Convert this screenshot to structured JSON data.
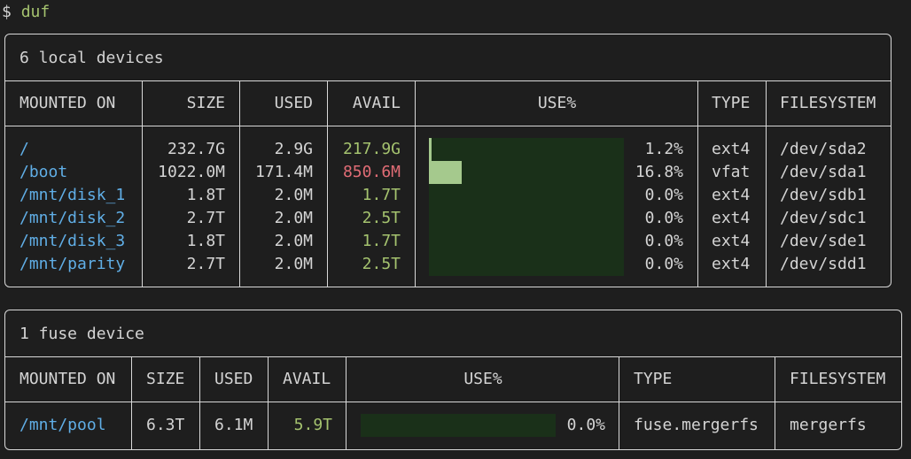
{
  "prompt": {
    "symbol": "$",
    "command": "duf"
  },
  "local": {
    "title": "6 local devices",
    "headers": {
      "mounted_on": "MOUNTED ON",
      "size": "SIZE",
      "used": "USED",
      "avail": "AVAIL",
      "use_pct": "USE%",
      "type": "TYPE",
      "filesystem": "FILESYSTEM"
    },
    "rows": [
      {
        "mounted_on": "/",
        "size": "232.7G",
        "used": "2.9G",
        "avail": "217.9G",
        "avail_status": "ok",
        "usage": 0.012,
        "use_pct": "1.2%",
        "type": "ext4",
        "filesystem": "/dev/sda2"
      },
      {
        "mounted_on": "/boot",
        "size": "1022.0M",
        "used": "171.4M",
        "avail": "850.6M",
        "avail_status": "low",
        "usage": 0.168,
        "use_pct": "16.8%",
        "type": "vfat",
        "filesystem": "/dev/sda1"
      },
      {
        "mounted_on": "/mnt/disk_1",
        "size": "1.8T",
        "used": "2.0M",
        "avail": "1.7T",
        "avail_status": "ok",
        "usage": 0.0,
        "use_pct": "0.0%",
        "type": "ext4",
        "filesystem": "/dev/sdb1"
      },
      {
        "mounted_on": "/mnt/disk_2",
        "size": "2.7T",
        "used": "2.0M",
        "avail": "2.5T",
        "avail_status": "ok",
        "usage": 0.0,
        "use_pct": "0.0%",
        "type": "ext4",
        "filesystem": "/dev/sdc1"
      },
      {
        "mounted_on": "/mnt/disk_3",
        "size": "1.8T",
        "used": "2.0M",
        "avail": "1.7T",
        "avail_status": "ok",
        "usage": 0.0,
        "use_pct": "0.0%",
        "type": "ext4",
        "filesystem": "/dev/sde1"
      },
      {
        "mounted_on": "/mnt/parity",
        "size": "2.7T",
        "used": "2.0M",
        "avail": "2.5T",
        "avail_status": "ok",
        "usage": 0.0,
        "use_pct": "0.0%",
        "type": "ext4",
        "filesystem": "/dev/sdd1"
      }
    ]
  },
  "fuse": {
    "title": "1 fuse device",
    "headers": {
      "mounted_on": "MOUNTED ON",
      "size": "SIZE",
      "used": "USED",
      "avail": "AVAIL",
      "use_pct": "USE%",
      "type": "TYPE",
      "filesystem": "FILESYSTEM"
    },
    "rows": [
      {
        "mounted_on": "/mnt/pool",
        "size": "6.3T",
        "used": "6.1M",
        "avail": "5.9T",
        "avail_status": "ok",
        "usage": 0.0,
        "use_pct": "0.0%",
        "type": "fuse.mergerfs",
        "filesystem": "mergerfs"
      }
    ]
  },
  "colors": {
    "background": "#1e1e1e",
    "text": "#d4d4d4",
    "border": "#d8d8d8",
    "mount": "#60aee6",
    "avail_ok": "#a5c36f",
    "avail_low": "#e06c75",
    "bar_track": "#1a3019",
    "bar_fill": "#a5c98d"
  }
}
